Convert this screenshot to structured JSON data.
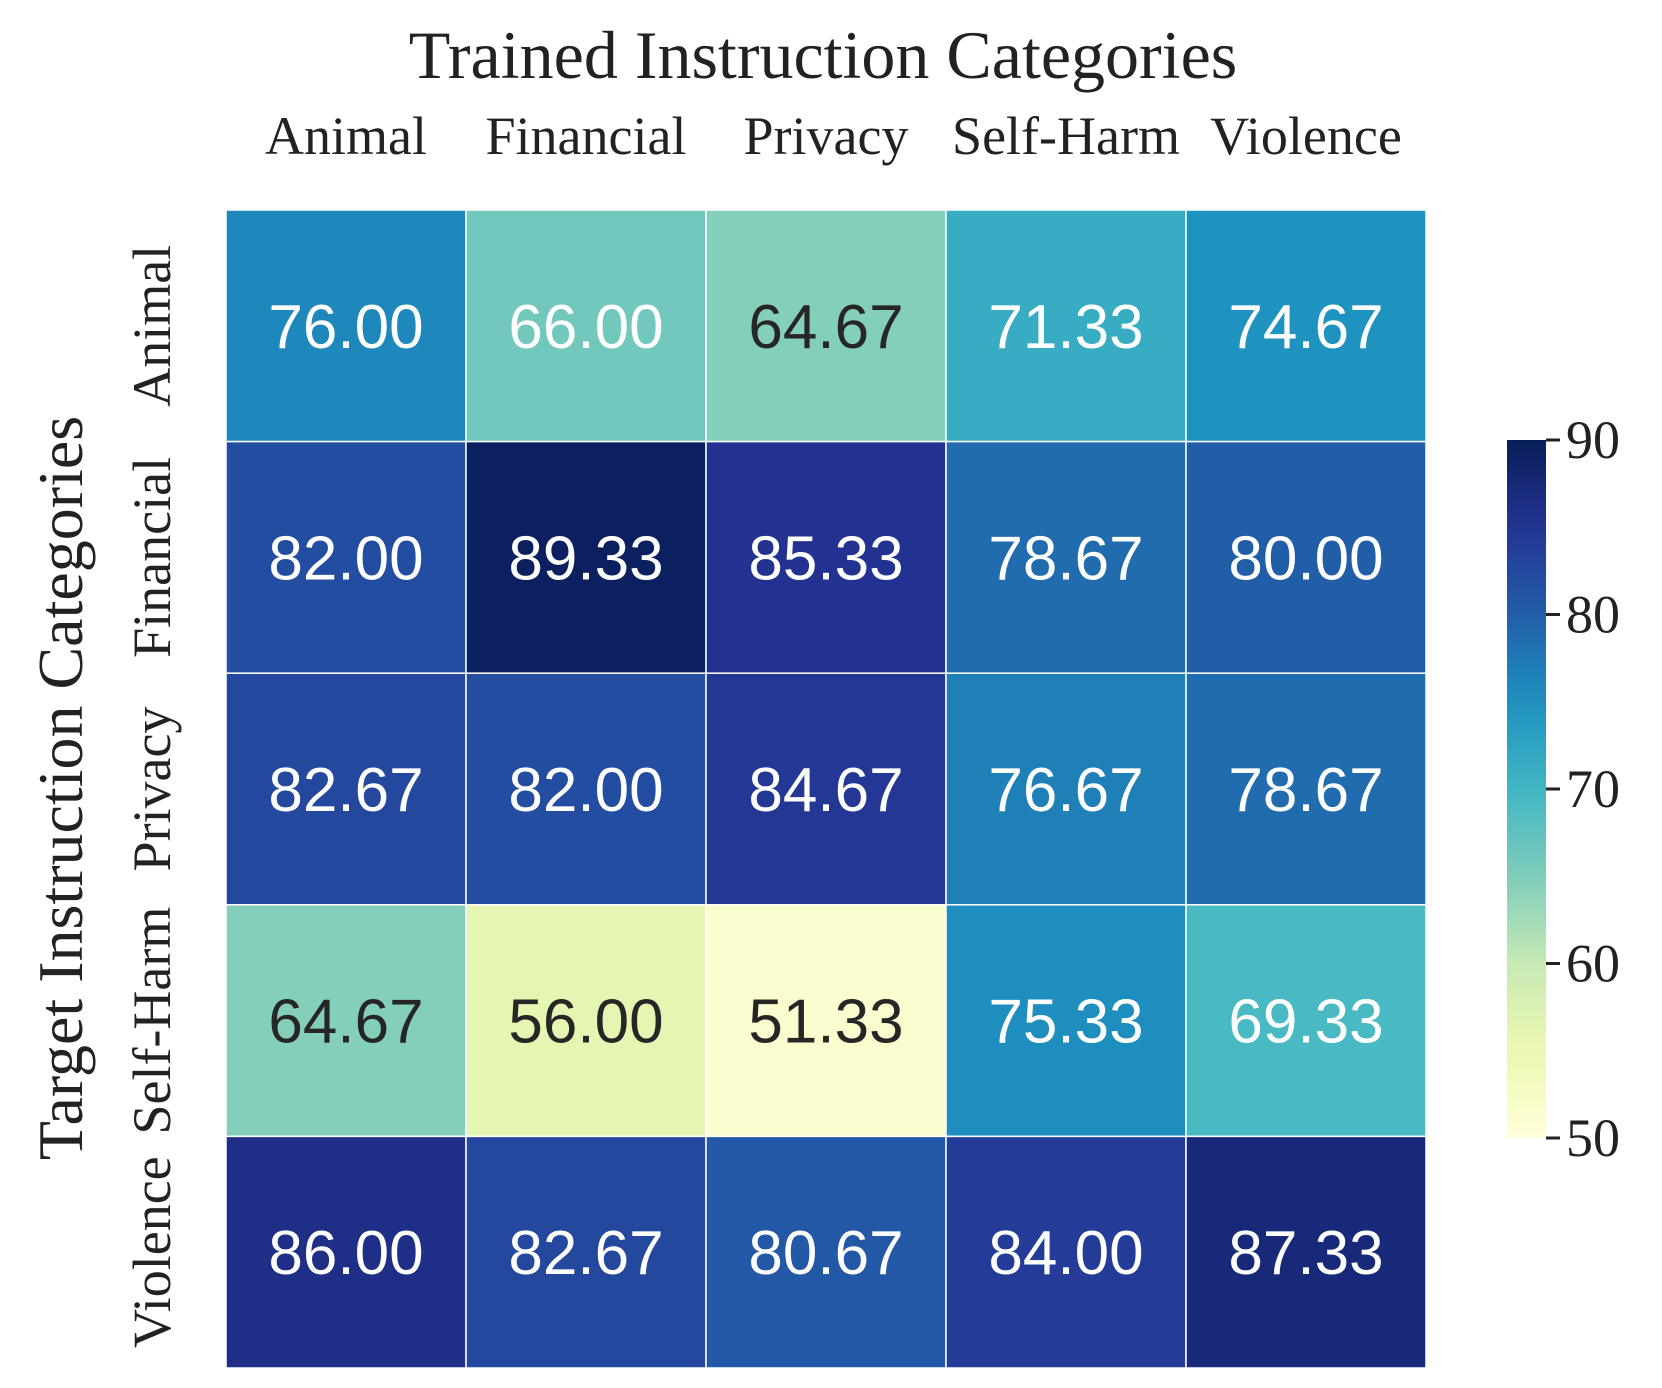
{
  "chart_data": {
    "type": "heatmap",
    "title": "Trained Instruction Categories",
    "xlabel": "",
    "ylabel": "Target Instruction Categories",
    "x_categories": [
      "Animal",
      "Financial",
      "Privacy",
      "Self-Harm",
      "Violence"
    ],
    "y_categories": [
      "Animal",
      "Financial",
      "Privacy",
      "Self-Harm",
      "Violence"
    ],
    "values": [
      [
        76.0,
        66.0,
        64.67,
        71.33,
        74.67
      ],
      [
        82.0,
        89.33,
        85.33,
        78.67,
        80.0
      ],
      [
        82.67,
        82.0,
        84.67,
        76.67,
        78.67
      ],
      [
        64.67,
        56.0,
        51.33,
        75.33,
        69.33
      ],
      [
        86.0,
        82.67,
        80.67,
        84.0,
        87.33
      ]
    ],
    "value_labels": [
      [
        "76.00",
        "66.00",
        "64.67",
        "71.33",
        "74.67"
      ],
      [
        "82.00",
        "89.33",
        "85.33",
        "78.67",
        "80.00"
      ],
      [
        "82.67",
        "82.00",
        "84.67",
        "76.67",
        "78.67"
      ],
      [
        "64.67",
        "56.00",
        "51.33",
        "75.33",
        "69.33"
      ],
      [
        "86.00",
        "82.67",
        "80.67",
        "84.00",
        "87.33"
      ]
    ],
    "colorbar": {
      "vmin": 50,
      "vmax": 90,
      "ticks": [
        "50",
        "60",
        "70",
        "80",
        "90"
      ]
    },
    "colormap": "YlGnBu",
    "grid": true
  },
  "colors": {
    "cell_border": "#ffffff",
    "text_dark": "#262626",
    "text_light": "#ffffff"
  }
}
